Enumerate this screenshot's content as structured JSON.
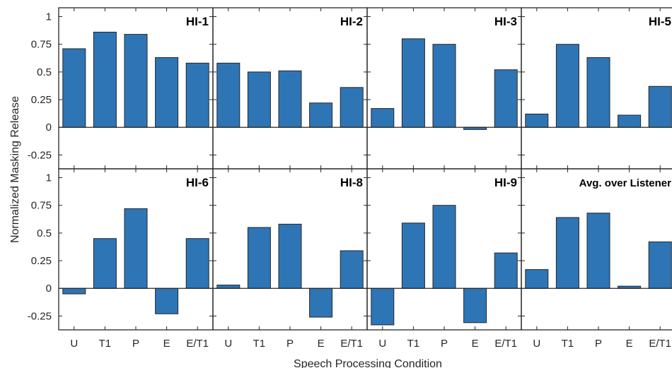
{
  "chart_data": {
    "type": "bar",
    "layout": "2x4 small multiples",
    "xlabel": "Speech Processing Condition",
    "ylabel": "Normalized Masking Release",
    "ylim": [
      -0.375,
      1.08
    ],
    "yticks": [
      -0.25,
      0,
      0.25,
      0.5,
      0.75,
      1
    ],
    "ytick_labels": [
      "-0.25",
      "0",
      "0.25",
      "0.5",
      "0.75",
      "1"
    ],
    "categories": [
      "U",
      "T1",
      "P",
      "E",
      "E/T1"
    ],
    "bar_color": "#2E75B6",
    "grid": false,
    "panels": [
      {
        "title": "HI-1",
        "values": [
          0.71,
          0.86,
          0.84,
          0.63,
          0.58
        ]
      },
      {
        "title": "HI-2",
        "values": [
          0.58,
          0.5,
          0.51,
          0.22,
          0.36
        ]
      },
      {
        "title": "HI-3",
        "values": [
          0.17,
          0.8,
          0.75,
          -0.02,
          0.52
        ]
      },
      {
        "title": "HI-5",
        "values": [
          0.12,
          0.75,
          0.63,
          0.11,
          0.37
        ]
      },
      {
        "title": "HI-6",
        "values": [
          -0.05,
          0.45,
          0.72,
          -0.23,
          0.45
        ]
      },
      {
        "title": "HI-8",
        "values": [
          0.03,
          0.55,
          0.58,
          -0.26,
          0.34
        ]
      },
      {
        "title": "HI-9",
        "values": [
          -0.33,
          0.59,
          0.75,
          -0.31,
          0.32
        ]
      },
      {
        "title": "Avg. over Listener",
        "values": [
          0.17,
          0.64,
          0.68,
          0.02,
          0.42
        ]
      }
    ]
  }
}
